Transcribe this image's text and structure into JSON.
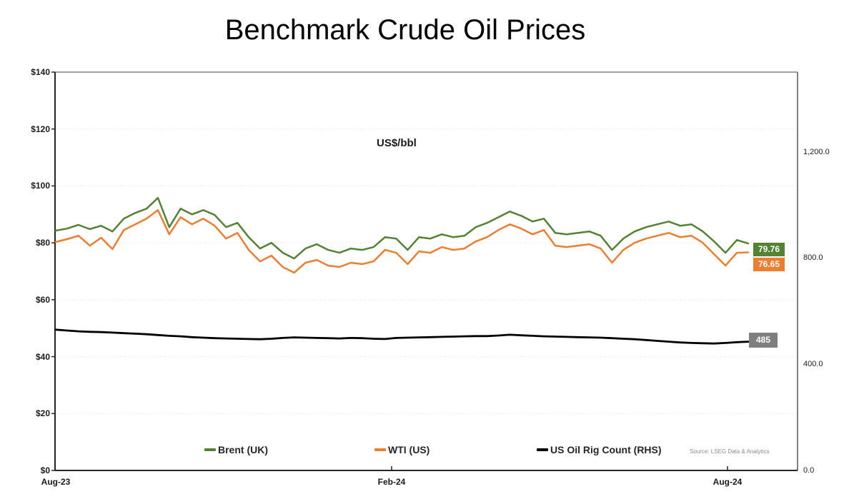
{
  "title": "Benchmark Crude Oil Prices",
  "annotation": "US$/bbl",
  "source": "Source: LSEG Data & Analytics",
  "colors": {
    "brent": "#548235",
    "wti": "#ED7D31",
    "rig": "#000000",
    "rig_label_bg": "#7F7F7F",
    "gridline": "#DBDBDB",
    "border_top_right": "#808080",
    "axis_left_bottom": "#262626",
    "background": "#FFFFFF"
  },
  "chart_data": {
    "type": "line",
    "title": "Benchmark Crude Oil Prices",
    "unit_annotation": "US$/bbl",
    "grid": "horizontal-dotted",
    "legend_position": "bottom",
    "left_axis": {
      "min": 0,
      "max": 140,
      "tick_interval": 20,
      "tick_values": [
        140,
        120,
        100,
        80,
        60,
        40,
        20,
        0
      ],
      "tick_labels": [
        "$140",
        "$120",
        "$100",
        "$80",
        "$60",
        "$40",
        "$20",
        "$0"
      ]
    },
    "right_axis": {
      "min": 0,
      "max": 1500,
      "tick_values": [
        1200,
        800,
        400,
        0
      ],
      "tick_labels": [
        "1,200.0",
        "800.0",
        "400.0",
        "0.0"
      ]
    },
    "x_axis": {
      "range_months": [
        0,
        13.24
      ],
      "ticks": [
        {
          "label": "Aug-23",
          "month": 0
        },
        {
          "label": "Feb-24",
          "month": 6
        },
        {
          "label": "Aug-24",
          "month": 12
        }
      ]
    },
    "series_x_start_month": 0,
    "series_x_end_month": 12.37,
    "series": [
      {
        "name": "Brent (UK)",
        "axis": "left",
        "color": "#548235",
        "end_label": "79.76",
        "end_label_bg": "#548235",
        "values": [
          84.3,
          85.0,
          86.3,
          84.8,
          86.0,
          84.0,
          88.5,
          90.5,
          92.0,
          95.8,
          85.5,
          92.0,
          90.0,
          91.5,
          89.8,
          85.5,
          87.0,
          82.0,
          78.0,
          80.0,
          76.5,
          74.5,
          78.0,
          79.5,
          77.5,
          76.5,
          78.0,
          77.5,
          78.5,
          82.0,
          81.5,
          77.5,
          82.0,
          81.5,
          83.0,
          82.0,
          82.5,
          85.5,
          87.0,
          89.0,
          91.0,
          89.5,
          87.5,
          88.5,
          83.5,
          83.0,
          83.5,
          84.0,
          82.5,
          77.5,
          81.5,
          84.0,
          85.5,
          86.5,
          87.5,
          86.0,
          86.5,
          84.0,
          80.5,
          76.5,
          81.0,
          79.76
        ]
      },
      {
        "name": "WTI (US)",
        "axis": "left",
        "color": "#ED7D31",
        "end_label": "76.65",
        "end_label_bg": "#ED7D31",
        "values": [
          80.3,
          81.3,
          82.5,
          79.0,
          81.8,
          77.8,
          84.5,
          86.5,
          88.5,
          91.5,
          83.0,
          89.0,
          86.5,
          88.5,
          86.0,
          81.5,
          83.5,
          77.5,
          73.5,
          75.5,
          71.5,
          69.5,
          73.0,
          74.0,
          72.0,
          71.5,
          73.0,
          72.5,
          73.5,
          77.5,
          76.5,
          72.5,
          77.0,
          76.5,
          78.5,
          77.5,
          78.0,
          80.5,
          82.0,
          84.5,
          86.5,
          85.0,
          83.0,
          84.5,
          79.0,
          78.5,
          79.0,
          79.5,
          78.0,
          73.0,
          77.5,
          80.0,
          81.5,
          82.5,
          83.5,
          82.0,
          82.5,
          80.0,
          76.0,
          72.0,
          76.5,
          76.65
        ]
      },
      {
        "name": "US Oil Rig Count (RHS)",
        "axis": "right",
        "color": "#000000",
        "end_label": "485",
        "end_label_bg": "#7F7F7F",
        "values": [
          530,
          527,
          524,
          522,
          521,
          519,
          517,
          515,
          513,
          510,
          507,
          505,
          502,
          500,
          498,
          497,
          496,
          495,
          494,
          496,
          499,
          501,
          500,
          499,
          498,
          497,
          499,
          498,
          496,
          495,
          499,
          500,
          501,
          502,
          503,
          504,
          505,
          506,
          506,
          508,
          511,
          509,
          507,
          505,
          504,
          503,
          502,
          501,
          500,
          498,
          496,
          494,
          491,
          488,
          485,
          482,
          480,
          479,
          478,
          480,
          483,
          485
        ]
      }
    ]
  }
}
